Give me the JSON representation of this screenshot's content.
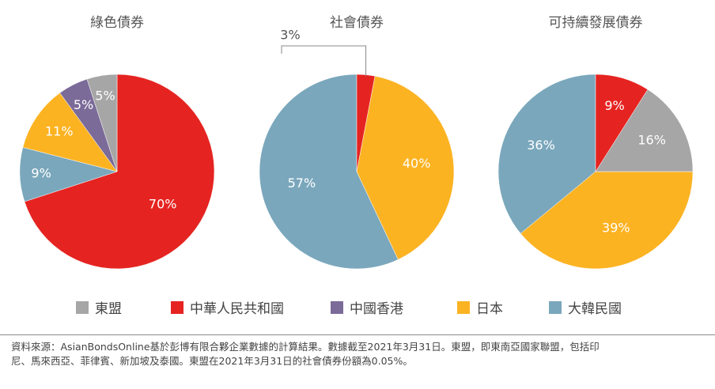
{
  "colors": {
    "asean": "#a6a6a6",
    "china": "#e52421",
    "hongkong": "#7b6b99",
    "japan": "#fcb322",
    "korea": "#7aa7bc"
  },
  "legend": [
    {
      "key": "asean",
      "label": "東盟"
    },
    {
      "key": "china",
      "label": "中華人民共和國"
    },
    {
      "key": "hongkong",
      "label": "中國香港"
    },
    {
      "key": "japan",
      "label": "日本"
    },
    {
      "key": "korea",
      "label": "大韓民國"
    }
  ],
  "chart_data": [
    {
      "type": "pie",
      "title": "綠色債券",
      "slices": [
        {
          "key": "china",
          "label": "70%",
          "value": 70
        },
        {
          "key": "korea",
          "label": "9%",
          "value": 9
        },
        {
          "key": "japan",
          "label": "11%",
          "value": 11
        },
        {
          "key": "hongkong",
          "label": "5%",
          "value": 5
        },
        {
          "key": "asean",
          "label": "5%",
          "value": 5
        }
      ]
    },
    {
      "type": "pie",
      "title": "社會債券",
      "slices": [
        {
          "key": "korea",
          "label": "57%",
          "value": 57
        },
        {
          "key": "japan",
          "label": "40%",
          "value": 40
        },
        {
          "key": "china",
          "label": "3%",
          "value": 3,
          "callout": true
        }
      ]
    },
    {
      "type": "pie",
      "title": "可持續發展債券",
      "slices": [
        {
          "key": "korea",
          "label": "36%",
          "value": 36
        },
        {
          "key": "japan",
          "label": "39%",
          "value": 39
        },
        {
          "key": "asean",
          "label": "16%",
          "value": 16
        },
        {
          "key": "china",
          "label": "9%",
          "value": 9
        }
      ]
    }
  ],
  "source": {
    "line1": "資料來源：AsianBondsOnline基於彭博有限合夥企業數據的計算結果。數據截至2021年3月31日。東盟，即東南亞國家聯盟，包括印",
    "line2": "尼、馬來西亞、菲律賓、新加坡及泰國。東盟在2021年3月31日的社會債券份額為0.05%。"
  }
}
